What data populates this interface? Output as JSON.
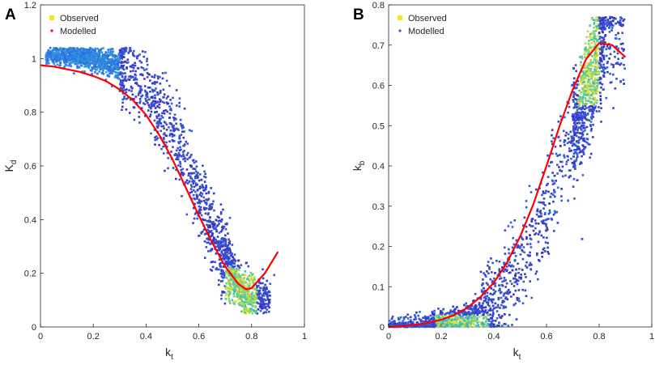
{
  "chart_data": [
    {
      "panel_label": "A",
      "type": "scatter",
      "xlabel": "k",
      "xlabel_sub": "t",
      "ylabel": "K",
      "ylabel_sub": "d",
      "xlim": [
        0,
        1
      ],
      "ylim": [
        0,
        1.2
      ],
      "xticks": [
        "0",
        "0.2",
        "0.4",
        "0.6",
        "0.8",
        "1"
      ],
      "yticks": [
        "0",
        "0.2",
        "0.4",
        "0.6",
        "0.8",
        "1",
        "1.2"
      ],
      "legend": [
        "Observed",
        "Modelled"
      ],
      "legend_position": "top-left",
      "series": [
        {
          "name": "Observed",
          "style": "density-colored points (blue to yellow)",
          "trend": [
            [
              0.02,
              1.01
            ],
            [
              0.1,
              1.01
            ],
            [
              0.2,
              1.0
            ],
            [
              0.3,
              0.97
            ],
            [
              0.4,
              0.88
            ],
            [
              0.5,
              0.73
            ],
            [
              0.6,
              0.5
            ],
            [
              0.7,
              0.25
            ],
            [
              0.75,
              0.15
            ],
            [
              0.78,
              0.12
            ],
            [
              0.8,
              0.11
            ]
          ]
        },
        {
          "name": "Modelled",
          "style": "red line",
          "x": [
            0.0,
            0.05,
            0.1,
            0.15,
            0.2,
            0.25,
            0.3,
            0.35,
            0.4,
            0.45,
            0.5,
            0.55,
            0.6,
            0.65,
            0.7,
            0.75,
            0.78,
            0.8,
            0.85,
            0.9
          ],
          "y": [
            0.975,
            0.97,
            0.96,
            0.95,
            0.935,
            0.915,
            0.885,
            0.845,
            0.79,
            0.715,
            0.625,
            0.52,
            0.415,
            0.315,
            0.225,
            0.16,
            0.14,
            0.145,
            0.2,
            0.28
          ]
        }
      ]
    },
    {
      "panel_label": "B",
      "type": "scatter",
      "xlabel": "k",
      "xlabel_sub": "t",
      "ylabel": "k",
      "ylabel_sub": "b",
      "xlim": [
        0,
        1
      ],
      "ylim": [
        0,
        0.8
      ],
      "xticks": [
        "0",
        "0.2",
        "0.4",
        "0.6",
        "0.8",
        "1"
      ],
      "yticks": [
        "0",
        "0.1",
        "0.2",
        "0.3",
        "0.4",
        "0.5",
        "0.6",
        "0.7",
        "0.8"
      ],
      "legend": [
        "Observed",
        "Modelled"
      ],
      "legend_position": "top-left",
      "series": [
        {
          "name": "Observed",
          "style": "density-colored points (blue to yellow)",
          "trend": [
            [
              0.0,
              0.0
            ],
            [
              0.2,
              0.01
            ],
            [
              0.3,
              0.02
            ],
            [
              0.4,
              0.06
            ],
            [
              0.5,
              0.15
            ],
            [
              0.6,
              0.3
            ],
            [
              0.7,
              0.48
            ],
            [
              0.75,
              0.58
            ],
            [
              0.8,
              0.68
            ],
            [
              0.82,
              0.72
            ]
          ]
        },
        {
          "name": "Modelled",
          "style": "red line",
          "x": [
            0.0,
            0.05,
            0.1,
            0.15,
            0.2,
            0.25,
            0.3,
            0.35,
            0.4,
            0.45,
            0.5,
            0.55,
            0.6,
            0.65,
            0.7,
            0.75,
            0.8,
            0.85,
            0.9
          ],
          "y": [
            0.0,
            0.002,
            0.005,
            0.01,
            0.018,
            0.03,
            0.048,
            0.075,
            0.11,
            0.16,
            0.225,
            0.305,
            0.4,
            0.5,
            0.59,
            0.665,
            0.705,
            0.7,
            0.67
          ]
        }
      ]
    }
  ],
  "colors": {
    "obs_low": "#3b2fc0",
    "obs_mid": "#2fa8d8",
    "obs_high": "#f9e61a",
    "model": "#ff0000",
    "axis": "#262626"
  }
}
